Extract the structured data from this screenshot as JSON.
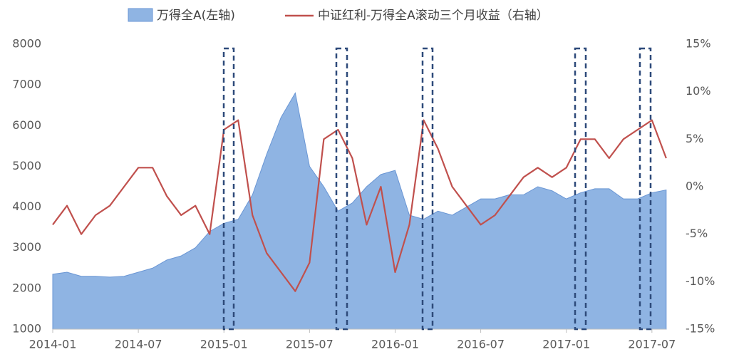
{
  "chart_data": {
    "type": "area-line",
    "categories": [
      "2014-01",
      null,
      null,
      null,
      null,
      null,
      "2014-07",
      null,
      null,
      null,
      null,
      null,
      "2015-01",
      null,
      null,
      null,
      null,
      null,
      "2015-07",
      null,
      null,
      null,
      null,
      null,
      "2016-01",
      null,
      null,
      null,
      null,
      null,
      "2016-07",
      null,
      null,
      null,
      null,
      null,
      "2017-01",
      null,
      null,
      null,
      null,
      null,
      "2017-07",
      null
    ],
    "series": [
      {
        "name": "万得全A(左轴)",
        "type": "area",
        "color": "#8fb4e3",
        "axis": "y",
        "values": [
          2350,
          2400,
          2300,
          2300,
          2280,
          2300,
          2400,
          2500,
          2700,
          2800,
          3000,
          3400,
          3600,
          3700,
          4300,
          5300,
          6200,
          6800,
          5000,
          4500,
          3900,
          4100,
          4500,
          4800,
          4900,
          3800,
          3700,
          3900,
          3800,
          4000,
          4200,
          4200,
          4300,
          4300,
          4500,
          4400,
          4200,
          4350,
          4450,
          4450,
          4200,
          4200,
          4350,
          4420
        ]
      },
      {
        "name": "中证红利-万得全A滚动三个月收益（右轴）",
        "type": "line",
        "color": "#c0504d",
        "axis": "y2",
        "values": [
          -4,
          -2,
          -5,
          -3,
          -2,
          0,
          2,
          2,
          -1,
          -3,
          -2,
          -5,
          6,
          7,
          -3,
          -7,
          -9,
          -11,
          -8,
          5,
          6,
          3,
          -4,
          0,
          -9,
          -4,
          7,
          4,
          0,
          -2,
          -4,
          -3,
          -1,
          1,
          2,
          1,
          2,
          5,
          5,
          3,
          5,
          6,
          7,
          3
        ]
      }
    ],
    "ylim": [
      1000,
      8000
    ],
    "yticks": [
      1000,
      2000,
      3000,
      4000,
      5000,
      6000,
      7000,
      8000
    ],
    "y2lim": [
      -15,
      15
    ],
    "y2ticks": [
      {
        "value": -15,
        "label": "-15%"
      },
      {
        "value": -10,
        "label": "-10%"
      },
      {
        "value": -5,
        "label": "-5%"
      },
      {
        "value": 0,
        "label": "0%"
      },
      {
        "value": 5,
        "label": "5%"
      },
      {
        "value": 10,
        "label": "10%"
      },
      {
        "value": 15,
        "label": "15%"
      }
    ]
  }
}
